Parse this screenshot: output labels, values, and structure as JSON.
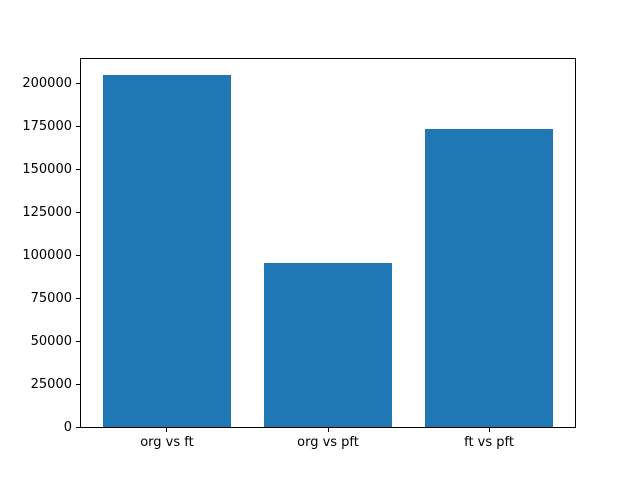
{
  "figure": {
    "background_color": "#ffffff",
    "spine_color": "#000000",
    "tick_label_color": "#000000"
  },
  "chart_data": {
    "type": "bar",
    "title": "",
    "xlabel": "",
    "ylabel": "",
    "categories": [
      "org vs ft",
      "org vs pft",
      "ft vs pft"
    ],
    "values": [
      204500,
      95000,
      173000
    ],
    "bar_color": "#1f77b4",
    "bar_width_fraction": 0.8,
    "ylim": [
      0,
      214725
    ],
    "yticks": [
      0,
      25000,
      50000,
      75000,
      100000,
      125000,
      150000,
      175000,
      200000
    ],
    "ytick_labels": [
      "0",
      "25000",
      "50000",
      "75000",
      "100000",
      "125000",
      "150000",
      "175000",
      "200000"
    ],
    "grid": false,
    "legend": false
  }
}
